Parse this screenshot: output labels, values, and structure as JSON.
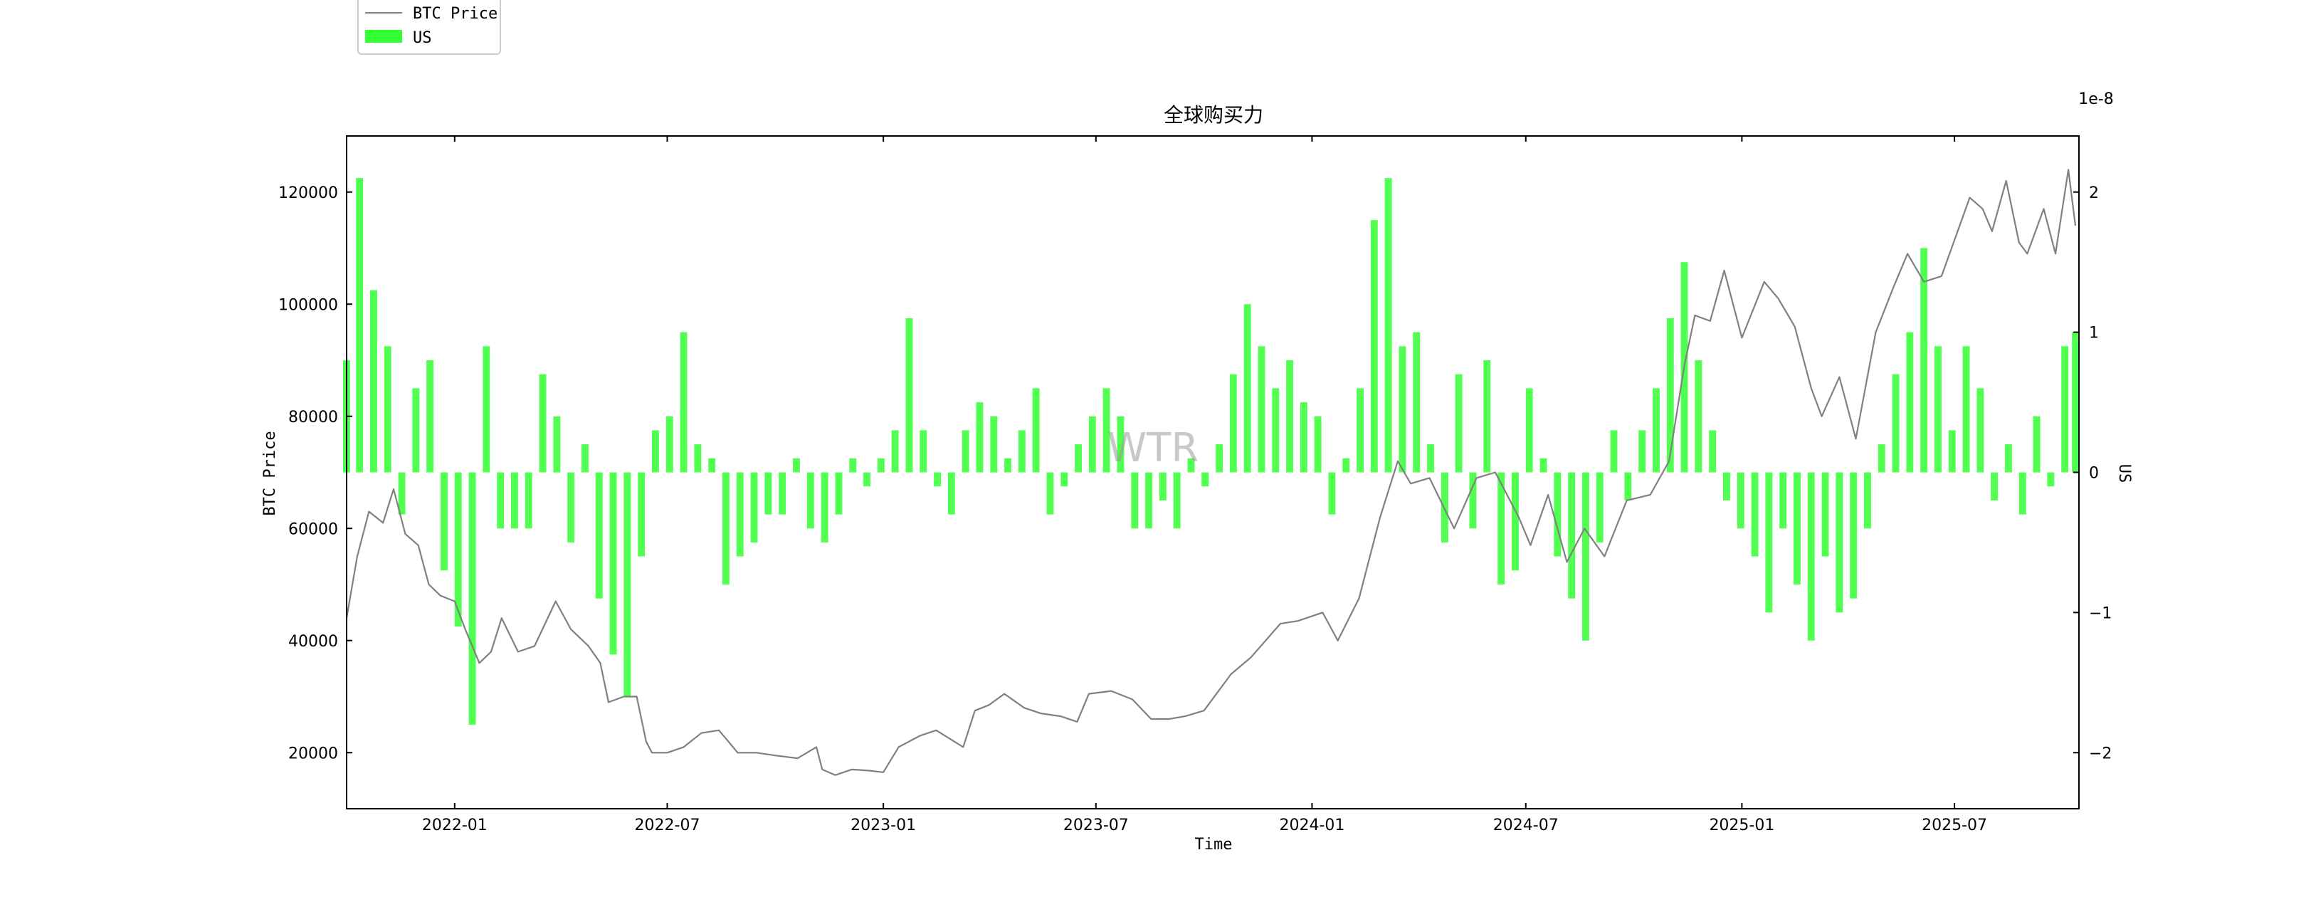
{
  "chart_data": {
    "type": "bar",
    "title": "全球购买力",
    "xlabel": "Time",
    "ylabel_left": "BTC Price",
    "ylabel_right": "US",
    "right_axis_offset_text": "1e-8",
    "watermark": "WTR",
    "legend_position": "top-left",
    "legend": [
      {
        "name": "BTC Price",
        "kind": "line",
        "color": "#808080"
      },
      {
        "name": "US",
        "kind": "bar",
        "color": "#33ff33"
      }
    ],
    "x_range": [
      "2021-10-01",
      "2025-10-15"
    ],
    "x_ticks": [
      "2022-01",
      "2022-07",
      "2023-01",
      "2023-07",
      "2024-01",
      "2024-07",
      "2025-01",
      "2025-07"
    ],
    "y_left_range": [
      10000,
      130000
    ],
    "y_left_ticks": [
      20000,
      40000,
      60000,
      80000,
      100000,
      120000
    ],
    "y_right_range": [
      -2.4,
      2.4
    ],
    "y_right_ticks": [
      -2,
      -1,
      0,
      1,
      2
    ],
    "y_right_tick_labels": [
      "−2",
      "−1",
      "0",
      "1",
      "2"
    ],
    "series": [
      {
        "name": "BTC Price",
        "type": "line",
        "color": "#808080",
        "x": [
          "2021-10-01",
          "2021-10-10",
          "2021-10-20",
          "2021-11-01",
          "2021-11-10",
          "2021-11-20",
          "2021-12-01",
          "2021-12-10",
          "2021-12-20",
          "2022-01-01",
          "2022-01-10",
          "2022-01-22",
          "2022-02-01",
          "2022-02-10",
          "2022-02-24",
          "2022-03-10",
          "2022-03-28",
          "2022-04-10",
          "2022-04-25",
          "2022-05-05",
          "2022-05-12",
          "2022-05-25",
          "2022-06-05",
          "2022-06-13",
          "2022-06-18",
          "2022-07-01",
          "2022-07-15",
          "2022-07-30",
          "2022-08-14",
          "2022-08-30",
          "2022-09-15",
          "2022-10-01",
          "2022-10-20",
          "2022-11-05",
          "2022-11-10",
          "2022-11-21",
          "2022-12-05",
          "2022-12-20",
          "2023-01-01",
          "2023-01-14",
          "2023-02-01",
          "2023-02-15",
          "2023-03-10",
          "2023-03-20",
          "2023-04-01",
          "2023-04-14",
          "2023-05-01",
          "2023-05-15",
          "2023-06-01",
          "2023-06-15",
          "2023-06-25",
          "2023-07-14",
          "2023-08-01",
          "2023-08-17",
          "2023-09-01",
          "2023-09-15",
          "2023-10-01",
          "2023-10-24",
          "2023-11-10",
          "2023-12-05",
          "2023-12-20",
          "2024-01-10",
          "2024-01-23",
          "2024-02-10",
          "2024-02-28",
          "2024-03-14",
          "2024-03-25",
          "2024-04-10",
          "2024-05-01",
          "2024-05-20",
          "2024-06-05",
          "2024-06-25",
          "2024-07-05",
          "2024-07-20",
          "2024-08-05",
          "2024-08-20",
          "2024-09-06",
          "2024-09-25",
          "2024-10-15",
          "2024-10-31",
          "2024-11-13",
          "2024-11-22",
          "2024-12-05",
          "2024-12-17",
          "2025-01-01",
          "2025-01-20",
          "2025-02-01",
          "2025-02-15",
          "2025-03-01",
          "2025-03-10",
          "2025-03-25",
          "2025-04-08",
          "2025-04-25",
          "2025-05-10",
          "2025-05-22",
          "2025-06-05",
          "2025-06-20",
          "2025-07-14",
          "2025-07-25",
          "2025-08-02",
          "2025-08-14",
          "2025-08-25",
          "2025-09-01",
          "2025-09-15",
          "2025-09-25",
          "2025-10-06",
          "2025-10-12"
        ],
        "values": [
          44000,
          55000,
          63000,
          61000,
          67000,
          59000,
          57000,
          50000,
          48000,
          47000,
          42000,
          36000,
          38000,
          44000,
          38000,
          39000,
          47000,
          42000,
          39000,
          36000,
          29000,
          30000,
          30000,
          22000,
          20000,
          20000,
          21000,
          23500,
          24000,
          20000,
          20000,
          19500,
          19000,
          21000,
          17000,
          16000,
          17000,
          16800,
          16500,
          21000,
          23000,
          24000,
          21000,
          27500,
          28500,
          30500,
          28000,
          27000,
          26500,
          25500,
          30500,
          31000,
          29500,
          26000,
          26000,
          26500,
          27500,
          34000,
          37000,
          43000,
          43500,
          45000,
          40000,
          47500,
          62000,
          72000,
          68000,
          69000,
          60000,
          69000,
          70000,
          62000,
          57000,
          66000,
          54000,
          60000,
          55000,
          65000,
          66000,
          72000,
          89000,
          98000,
          97000,
          106000,
          94000,
          104000,
          101000,
          96000,
          85000,
          80000,
          87000,
          76000,
          95000,
          103000,
          109000,
          104000,
          105000,
          119000,
          117000,
          113000,
          122000,
          111000,
          109000,
          117000,
          109000,
          124000,
          114000
        ]
      },
      {
        "name": "US",
        "type": "bar",
        "color": "#33ff33",
        "unit_multiplier": "1e-8",
        "x": [
          "2021-10-01",
          "2021-10-12",
          "2021-10-24",
          "2021-11-05",
          "2021-11-17",
          "2021-11-29",
          "2021-12-11",
          "2021-12-23",
          "2022-01-04",
          "2022-01-16",
          "2022-01-28",
          "2022-02-09",
          "2022-02-21",
          "2022-03-05",
          "2022-03-17",
          "2022-03-29",
          "2022-04-10",
          "2022-04-22",
          "2022-05-04",
          "2022-05-16",
          "2022-05-28",
          "2022-06-09",
          "2022-06-21",
          "2022-07-03",
          "2022-07-15",
          "2022-07-27",
          "2022-08-08",
          "2022-08-20",
          "2022-09-01",
          "2022-09-13",
          "2022-09-25",
          "2022-10-07",
          "2022-10-19",
          "2022-10-31",
          "2022-11-12",
          "2022-11-24",
          "2022-12-06",
          "2022-12-18",
          "2022-12-30",
          "2023-01-11",
          "2023-01-23",
          "2023-02-04",
          "2023-02-16",
          "2023-02-28",
          "2023-03-12",
          "2023-03-24",
          "2023-04-05",
          "2023-04-17",
          "2023-04-29",
          "2023-05-11",
          "2023-05-23",
          "2023-06-04",
          "2023-06-16",
          "2023-06-28",
          "2023-07-10",
          "2023-07-22",
          "2023-08-03",
          "2023-08-15",
          "2023-08-27",
          "2023-09-08",
          "2023-09-20",
          "2023-10-02",
          "2023-10-14",
          "2023-10-26",
          "2023-11-07",
          "2023-11-19",
          "2023-12-01",
          "2023-12-13",
          "2023-12-25",
          "2024-01-06",
          "2024-01-18",
          "2024-01-30",
          "2024-02-11",
          "2024-02-23",
          "2024-03-06",
          "2024-03-18",
          "2024-03-30",
          "2024-04-11",
          "2024-04-23",
          "2024-05-05",
          "2024-05-17",
          "2024-05-29",
          "2024-06-10",
          "2024-06-22",
          "2024-07-04",
          "2024-07-16",
          "2024-07-28",
          "2024-08-09",
          "2024-08-21",
          "2024-09-02",
          "2024-09-14",
          "2024-09-26",
          "2024-10-08",
          "2024-10-20",
          "2024-11-01",
          "2024-11-13",
          "2024-11-25",
          "2024-12-07",
          "2024-12-19",
          "2024-12-31",
          "2025-01-12",
          "2025-01-24",
          "2025-02-05",
          "2025-02-17",
          "2025-03-01",
          "2025-03-13",
          "2025-03-25",
          "2025-04-06",
          "2025-04-18",
          "2025-04-30",
          "2025-05-12",
          "2025-05-24",
          "2025-06-05",
          "2025-06-17",
          "2025-06-29",
          "2025-07-11",
          "2025-07-23",
          "2025-08-04",
          "2025-08-16",
          "2025-08-28",
          "2025-09-09",
          "2025-09-21",
          "2025-10-03",
          "2025-10-12"
        ],
        "values": [
          0.8,
          2.1,
          1.3,
          0.9,
          -0.3,
          0.6,
          0.8,
          -0.7,
          -1.1,
          -1.8,
          0.9,
          -0.4,
          -0.4,
          -0.4,
          0.7,
          0.4,
          -0.5,
          0.2,
          -0.9,
          -1.3,
          -1.6,
          -0.6,
          0.3,
          0.4,
          1.0,
          0.2,
          0.1,
          -0.8,
          -0.6,
          -0.5,
          -0.3,
          -0.3,
          0.1,
          -0.4,
          -0.5,
          -0.3,
          0.1,
          -0.1,
          0.1,
          0.3,
          1.1,
          0.3,
          -0.1,
          -0.3,
          0.3,
          0.5,
          0.4,
          0.1,
          0.3,
          0.6,
          -0.3,
          -0.1,
          0.2,
          0.4,
          0.6,
          0.4,
          -0.4,
          -0.4,
          -0.2,
          -0.4,
          0.1,
          -0.1,
          0.2,
          0.7,
          1.2,
          0.9,
          0.6,
          0.8,
          0.5,
          0.4,
          -0.3,
          0.1,
          0.6,
          1.8,
          2.1,
          0.9,
          1.0,
          0.2,
          -0.5,
          0.7,
          -0.4,
          0.8,
          -0.8,
          -0.7,
          0.6,
          0.1,
          -0.6,
          -0.9,
          -1.2,
          -0.5,
          0.3,
          -0.2,
          0.3,
          0.6,
          1.1,
          1.5,
          0.8,
          0.3,
          -0.2,
          -0.4,
          -0.6,
          -1.0,
          -0.4,
          -0.8,
          -1.2,
          -0.6,
          -1.0,
          -0.9,
          -0.4,
          0.2,
          0.7,
          1.0,
          1.6,
          0.9,
          0.3,
          0.9,
          0.6,
          -0.2,
          0.2,
          -0.3,
          0.4,
          -0.1,
          0.9,
          1.0
        ]
      }
    ]
  }
}
